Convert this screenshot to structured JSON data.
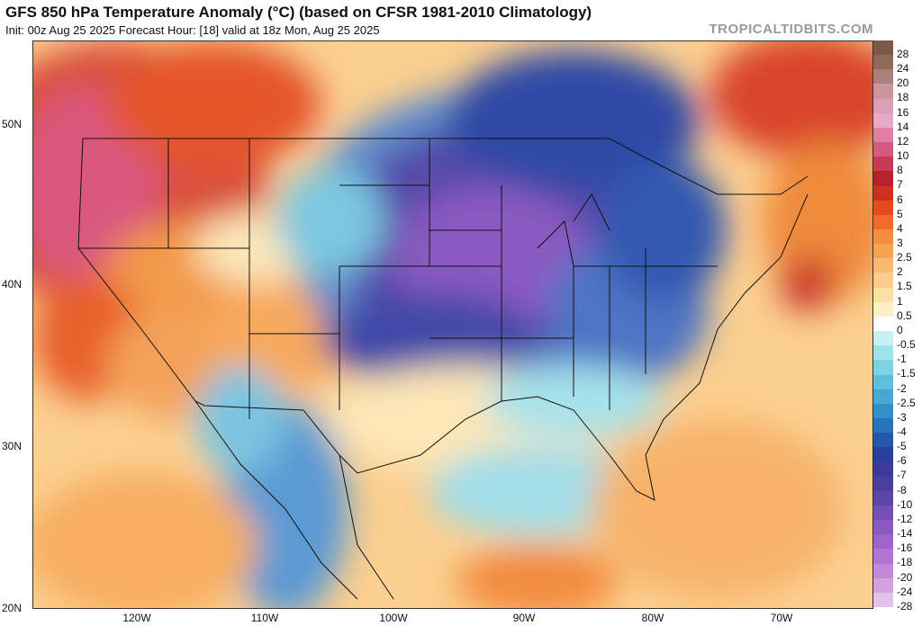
{
  "header": {
    "title": "GFS 850 hPa Temperature Anomaly (°C) (based on CFSR 1981-2010 Climatology)",
    "subtitle": "Init: 00z Aug 25 2025   Forecast Hour: [18]   valid at 18z Mon, Aug 25 2025",
    "credit": "TROPICALTIDBITS.COM"
  },
  "map": {
    "region": "Continental United States",
    "lat_labels": [
      "50N",
      "40N",
      "30N",
      "20N"
    ],
    "lon_labels": [
      "120W",
      "110W",
      "100W",
      "90W",
      "80W",
      "70W"
    ]
  },
  "colorbar": {
    "labels": [
      "28",
      "24",
      "20",
      "18",
      "16",
      "14",
      "12",
      "10",
      "8",
      "7",
      "6",
      "5",
      "4",
      "3",
      "2.5",
      "2",
      "1.5",
      "1",
      "0.5",
      "0",
      "-0.5",
      "-1",
      "-1.5",
      "-2",
      "-2.5",
      "-3",
      "-4",
      "-5",
      "-6",
      "-7",
      "-8",
      "-10",
      "-12",
      "-14",
      "-16",
      "-18",
      "-20",
      "-24",
      "-28"
    ],
    "colors": [
      "#7a5a46",
      "#8f6a56",
      "#a9807a",
      "#c9979c",
      "#d9a0b8",
      "#e6a9c8",
      "#e17ea6",
      "#d45a7e",
      "#c73b56",
      "#b8202e",
      "#cd2f20",
      "#e64a1c",
      "#f26b2a",
      "#f68d3c",
      "#f7a354",
      "#f9b96e",
      "#fbcd8a",
      "#fde0a6",
      "#fef0c6",
      "#ffffff",
      "#c6f0f2",
      "#9fe3ea",
      "#7dd2e2",
      "#5fbfdb",
      "#46a9d4",
      "#338fca",
      "#2a72bd",
      "#2656ac",
      "#2a3f9c",
      "#3c3a98",
      "#4c3f9c",
      "#5e46a5",
      "#7350b2",
      "#8a5ac0",
      "#9e64cc",
      "#b373d4",
      "#c487da",
      "#d2a1e0",
      "#e2c1ea"
    ]
  }
}
